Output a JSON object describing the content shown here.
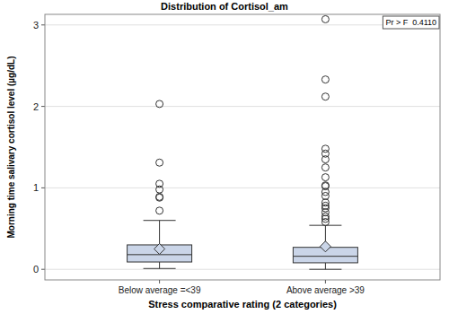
{
  "chart_data": {
    "type": "box",
    "title": "Distribution of Cortisol_am",
    "x_label": "Stress comparative rating (2 categories)",
    "y_label": "Morning time salivary cortisol level (µg/dL)",
    "annotation": "Pr > F  0.4110",
    "categories": [
      "Below average =<39",
      "Above average >39"
    ],
    "stats": [
      {
        "min": 0.01,
        "q1": 0.09,
        "median": 0.18,
        "q3": 0.3,
        "max": 0.6,
        "mean": 0.25,
        "outliers": [
          0.72,
          0.88,
          0.89,
          0.98,
          1.05,
          1.31,
          2.03
        ]
      },
      {
        "min": 0.0,
        "q1": 0.08,
        "median": 0.16,
        "q3": 0.27,
        "max": 0.54,
        "mean": 0.28,
        "outliers": [
          0.58,
          0.62,
          0.65,
          0.7,
          0.75,
          0.78,
          0.82,
          0.9,
          0.95,
          1.02,
          1.03,
          1.13,
          1.25,
          1.35,
          1.42,
          1.48,
          2.12,
          2.33,
          3.07
        ]
      }
    ],
    "color": "#cad5e8",
    "ylim": [
      -0.13,
      3.13
    ],
    "yticks": [
      0,
      1,
      2,
      3
    ],
    "grid": true
  }
}
